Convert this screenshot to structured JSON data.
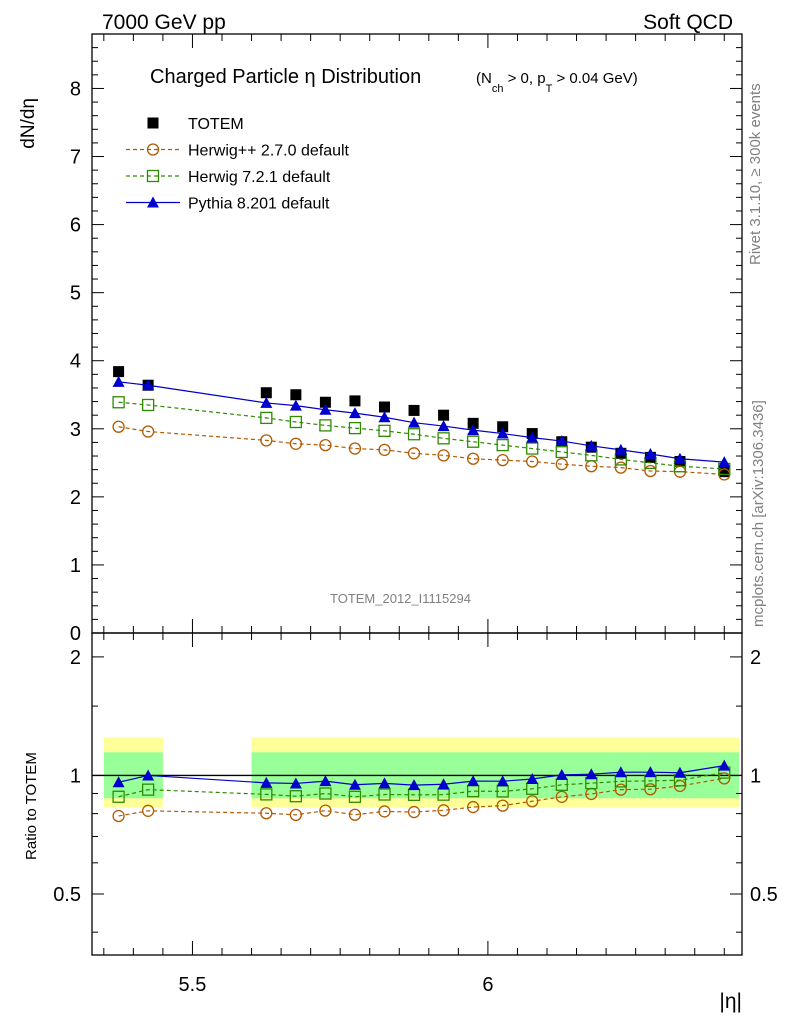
{
  "header": {
    "left": "7000 GeV pp",
    "right": "Soft QCD"
  },
  "side_labels": {
    "rivet": "Rivet 3.1.10, ≥ 300k events",
    "mcplots": "mcplots.cern.ch [arXiv:1306.3436]"
  },
  "chart_data": {
    "type": "scatter",
    "title": "Charged Particle η Distribution",
    "title_suffix": "(N_ch > 0, p_T > 0.04 GeV)",
    "watermark": "TOTEM_2012_I1115294",
    "xlabel": "|η|",
    "ylabel": "dN/dη",
    "ratio_ylabel": "Ratio to TOTEM",
    "xlim": [
      5.33,
      6.43
    ],
    "ylim": [
      0,
      8.8
    ],
    "ratio_ylim": [
      0.35,
      2.3
    ],
    "ratio_scale": "log",
    "x_ticks": [
      5.5,
      6
    ],
    "y_ticks": [
      0,
      1,
      2,
      3,
      4,
      5,
      6,
      7,
      8
    ],
    "ratio_ticks": [
      0.5,
      1,
      2
    ],
    "legend_position": "top-left",
    "x": [
      5.375,
      5.425,
      5.625,
      5.675,
      5.725,
      5.775,
      5.825,
      5.875,
      5.925,
      5.975,
      6.025,
      6.075,
      6.125,
      6.175,
      6.225,
      6.275,
      6.325,
      6.4
    ],
    "x_edges": [
      [
        5.35,
        5.45
      ],
      [
        5.6,
        6.425
      ]
    ],
    "band_inner": [
      0.875,
      1.145
    ],
    "band_outer": [
      0.83,
      1.25
    ],
    "series": [
      {
        "name": "TOTEM",
        "marker": "square-filled",
        "color": "#000000",
        "values": [
          3.84,
          3.64,
          3.53,
          3.5,
          3.39,
          3.41,
          3.32,
          3.27,
          3.2,
          3.08,
          3.03,
          2.93,
          2.81,
          2.73,
          2.64,
          2.58,
          2.52,
          2.37
        ]
      },
      {
        "name": "Herwig++ 2.7.0 default",
        "marker": "circle-open",
        "color": "#b35a00",
        "values": [
          3.03,
          2.96,
          2.83,
          2.78,
          2.76,
          2.71,
          2.69,
          2.64,
          2.61,
          2.56,
          2.54,
          2.52,
          2.48,
          2.45,
          2.43,
          2.38,
          2.37,
          2.33
        ]
      },
      {
        "name": "Herwig 7.2.1 default",
        "marker": "square-open",
        "color": "#2e8b00",
        "values": [
          3.39,
          3.35,
          3.16,
          3.1,
          3.05,
          3.01,
          2.97,
          2.92,
          2.86,
          2.81,
          2.76,
          2.71,
          2.66,
          2.61,
          2.55,
          2.5,
          2.45,
          2.41
        ]
      },
      {
        "name": "Pythia 8.201 default",
        "marker": "triangle-filled",
        "color": "#0000cc",
        "values": [
          3.69,
          3.64,
          3.38,
          3.34,
          3.28,
          3.23,
          3.17,
          3.09,
          3.04,
          2.98,
          2.93,
          2.87,
          2.82,
          2.75,
          2.69,
          2.63,
          2.56,
          2.51
        ]
      }
    ]
  }
}
